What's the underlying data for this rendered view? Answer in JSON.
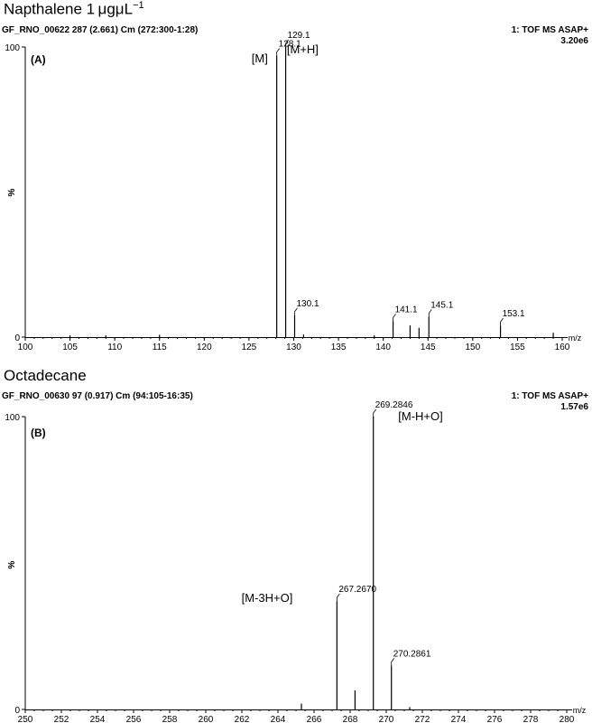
{
  "chart_data": [
    {
      "type": "bar",
      "compound_pre": "Napthalene 1",
      "compound_unit": "μgμL",
      "compound_exp": "−1",
      "header_left": "GF_RNO_00622 287 (2.661) Cm (272:300-1:28)",
      "header_right_line1": "1: TOF MS ASAP+",
      "header_right_line2": "3.20e6",
      "panel_label": "(A)",
      "ylabel": "%",
      "xlabel": "m/z",
      "xlim": [
        100,
        160
      ],
      "ylim": [
        0,
        100
      ],
      "x_ticks": [
        100,
        105,
        110,
        115,
        120,
        125,
        130,
        135,
        140,
        145,
        150,
        155,
        160
      ],
      "y_ticks": [
        0,
        100
      ],
      "peaks": [
        {
          "mz": 105.0,
          "intensity": 0.6
        },
        {
          "mz": 109.0,
          "intensity": 0.6
        },
        {
          "mz": 115.0,
          "intensity": 0.8
        },
        {
          "mz": 128.1,
          "intensity": 97,
          "label": "128.1"
        },
        {
          "mz": 129.1,
          "intensity": 100,
          "label": "129.1"
        },
        {
          "mz": 130.1,
          "intensity": 7.5,
          "label": "130.1"
        },
        {
          "mz": 131.1,
          "intensity": 0.9
        },
        {
          "mz": 139.0,
          "intensity": 0.6
        },
        {
          "mz": 141.1,
          "intensity": 5.5,
          "label": "141.1"
        },
        {
          "mz": 143.0,
          "intensity": 4.0
        },
        {
          "mz": 144.0,
          "intensity": 3.2
        },
        {
          "mz": 145.1,
          "intensity": 7.0,
          "label": "145.1"
        },
        {
          "mz": 153.1,
          "intensity": 4.0,
          "label": "153.1"
        },
        {
          "mz": 159.0,
          "intensity": 1.5
        }
      ],
      "annotations": [
        {
          "text": "[M]",
          "mz": 126.2,
          "intensity": 96
        },
        {
          "text": "[M+H]",
          "mz": 131.0,
          "intensity": 99
        }
      ]
    },
    {
      "type": "bar",
      "compound": "Octadecane",
      "header_left": "GF_RNO_00630 97 (0.917) Cm (94:105-16:35)",
      "header_right_line1": "1: TOF MS ASAP+",
      "header_right_line2": "1.57e6",
      "panel_label": "(B)",
      "ylabel": "%",
      "xlabel": "m/z",
      "xlim": [
        250,
        280
      ],
      "ylim": [
        0,
        100
      ],
      "x_ticks": [
        250,
        252,
        254,
        256,
        258,
        260,
        262,
        264,
        266,
        268,
        270,
        272,
        274,
        276,
        278,
        280
      ],
      "y_ticks": [
        0,
        100
      ],
      "peaks": [
        {
          "mz": 265.3,
          "intensity": 2.0
        },
        {
          "mz": 267.267,
          "intensity": 37,
          "label": "267.2670"
        },
        {
          "mz": 268.27,
          "intensity": 6.5
        },
        {
          "mz": 269.2846,
          "intensity": 100,
          "label": "269.2846"
        },
        {
          "mz": 270.2861,
          "intensity": 15,
          "label": "270.2861"
        },
        {
          "mz": 271.3,
          "intensity": 0.8
        }
      ],
      "annotations": [
        {
          "text": "[M-3H+O]",
          "mz": 263.4,
          "intensity": 38
        },
        {
          "text": "[M-H+O]",
          "mz": 271.9,
          "intensity": 100
        }
      ]
    }
  ]
}
